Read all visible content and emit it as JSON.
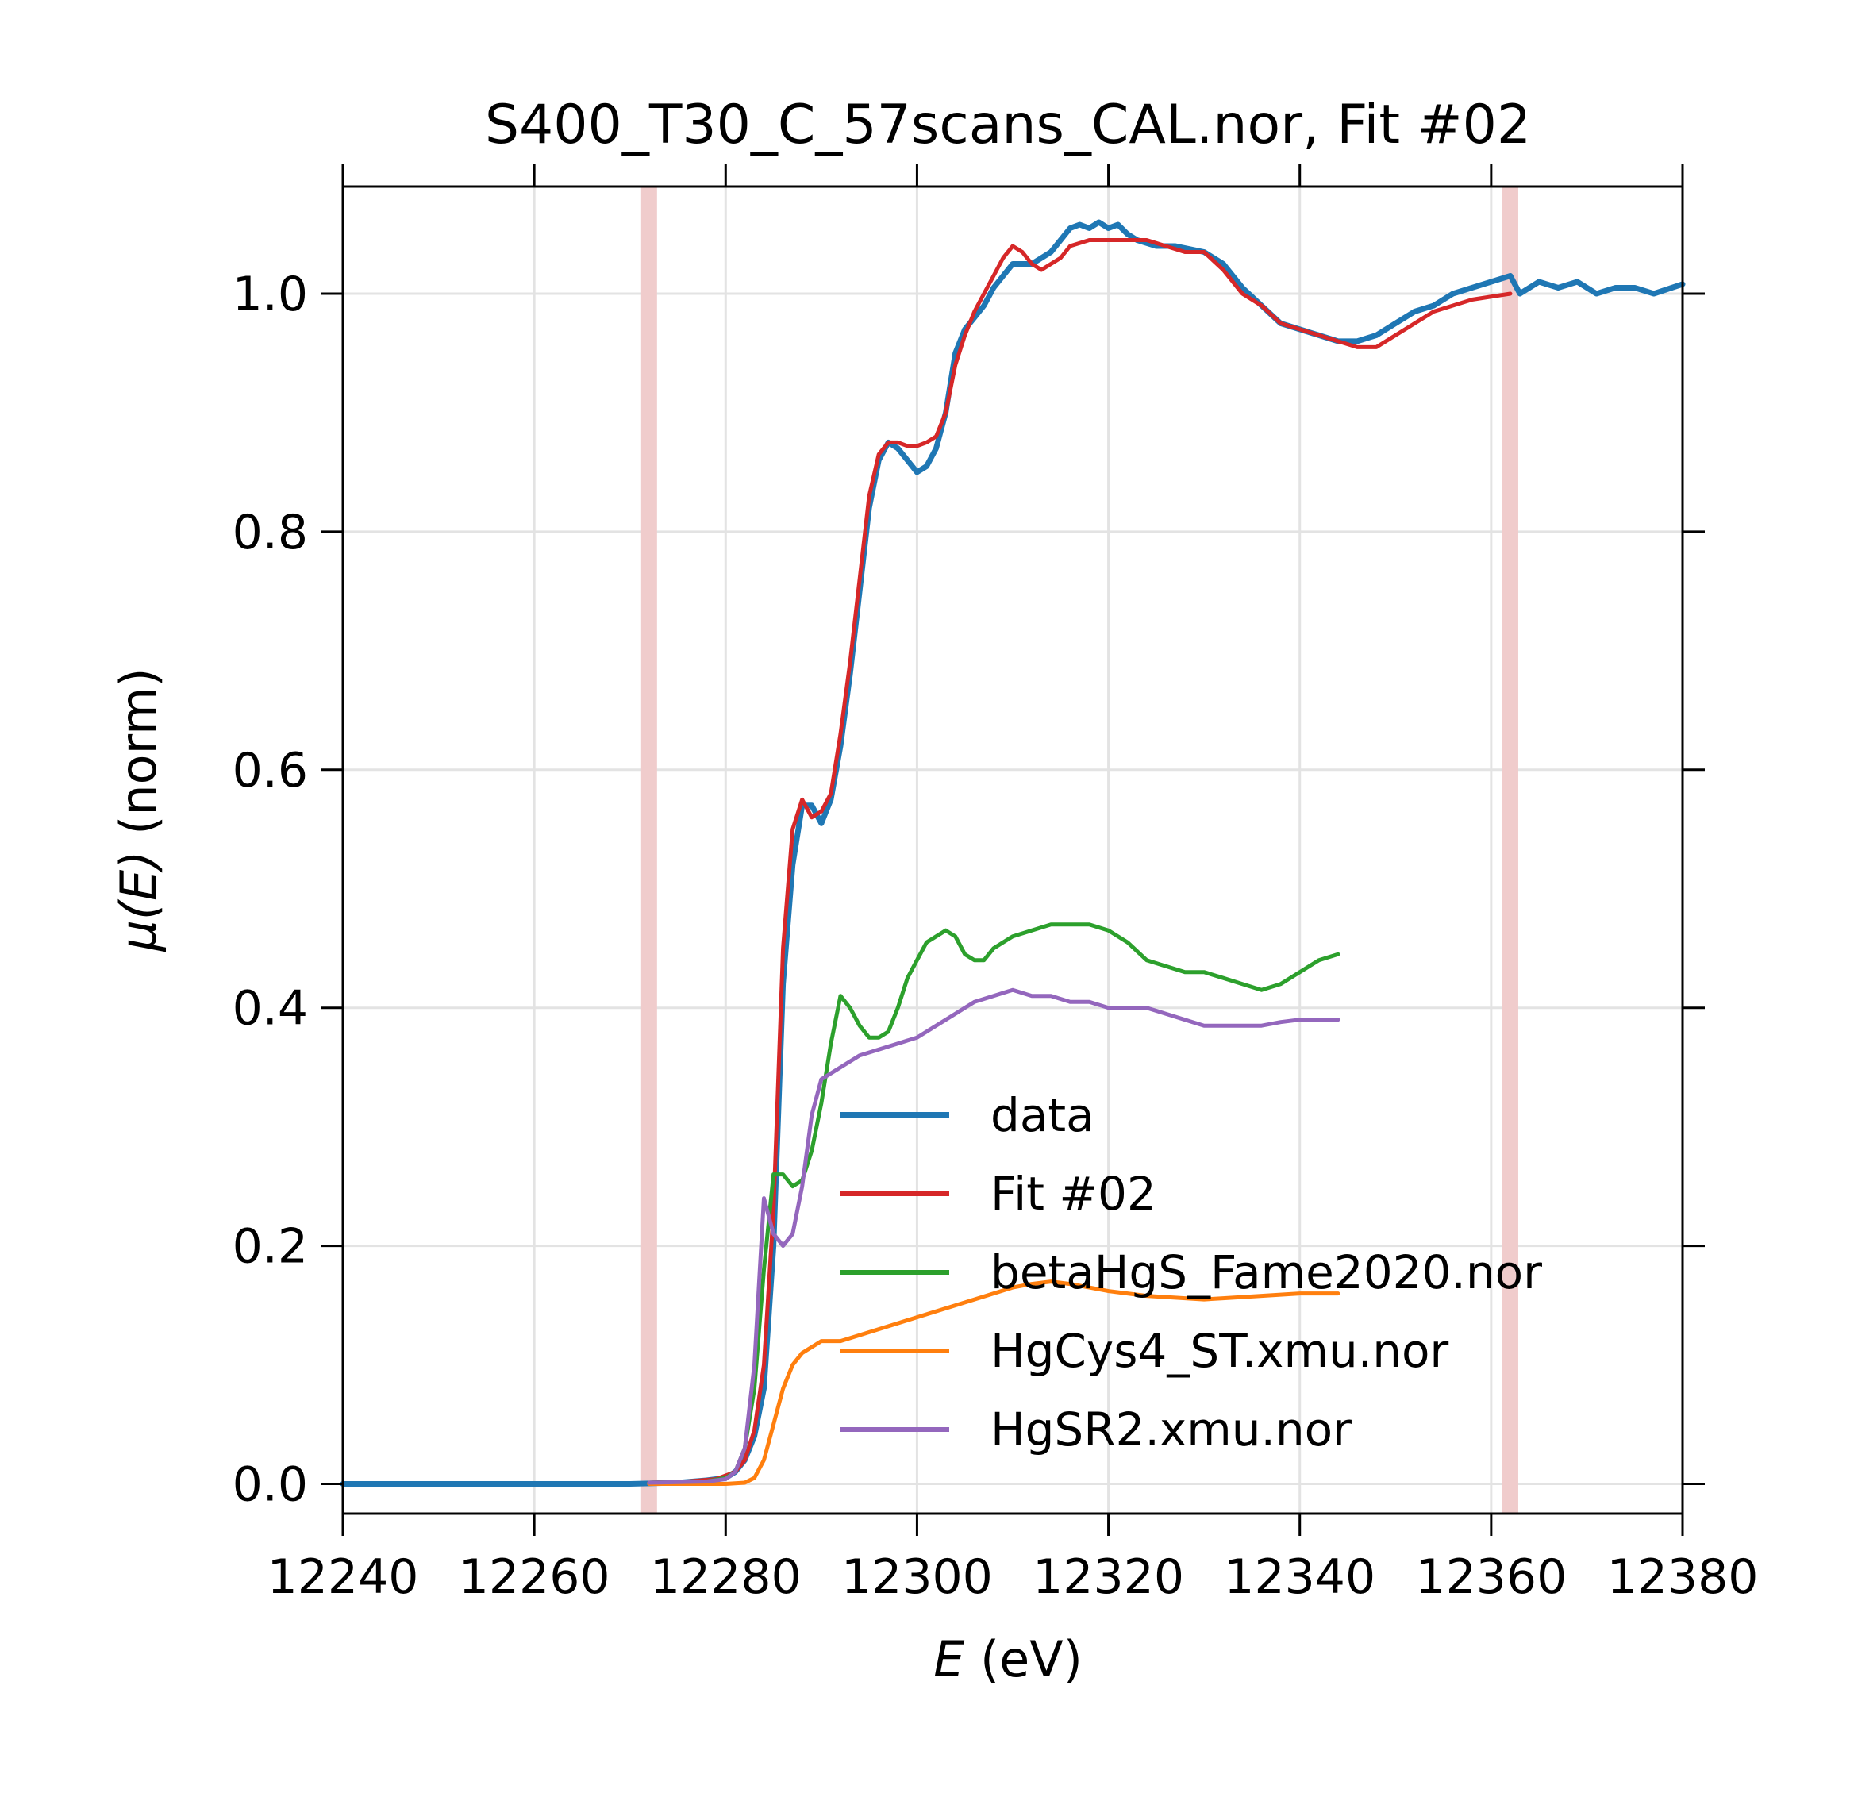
{
  "chart_data": {
    "type": "line",
    "title": "S400_T30_C_57scans_CAL.nor, Fit #02",
    "xlabel_var": "E",
    "xlabel_unit": " (eV)",
    "ylabel_var": "μ(E)",
    "ylabel_unit": " (norm)",
    "xlim": [
      12240,
      12380
    ],
    "ylim": [
      -0.025,
      1.09
    ],
    "xticks": [
      12240,
      12260,
      12280,
      12300,
      12320,
      12340,
      12360,
      12380
    ],
    "yticks": [
      0.0,
      0.2,
      0.4,
      0.6,
      0.8,
      1.0
    ],
    "grid": true,
    "legend_position": "lower-center",
    "fit_range": [
      12272,
      12362
    ],
    "fit_range_color": "#f0cccc",
    "series": [
      {
        "name": "data",
        "color": "#1f77b4",
        "width": 7,
        "points": [
          [
            12240,
            0.0
          ],
          [
            12250,
            0.0
          ],
          [
            12260,
            0.0
          ],
          [
            12270,
            0.0
          ],
          [
            12275,
            0.001
          ],
          [
            12278,
            0.003
          ],
          [
            12280,
            0.005
          ],
          [
            12281,
            0.01
          ],
          [
            12282,
            0.02
          ],
          [
            12283,
            0.04
          ],
          [
            12284,
            0.08
          ],
          [
            12285,
            0.2
          ],
          [
            12286,
            0.42
          ],
          [
            12287,
            0.52
          ],
          [
            12288,
            0.57
          ],
          [
            12289,
            0.57
          ],
          [
            12290,
            0.555
          ],
          [
            12291,
            0.575
          ],
          [
            12292,
            0.62
          ],
          [
            12293,
            0.68
          ],
          [
            12294,
            0.75
          ],
          [
            12295,
            0.82
          ],
          [
            12296,
            0.86
          ],
          [
            12297,
            0.875
          ],
          [
            12298,
            0.87
          ],
          [
            12299,
            0.86
          ],
          [
            12300,
            0.85
          ],
          [
            12301,
            0.855
          ],
          [
            12302,
            0.87
          ],
          [
            12303,
            0.9
          ],
          [
            12304,
            0.95
          ],
          [
            12305,
            0.97
          ],
          [
            12306,
            0.98
          ],
          [
            12307,
            0.99
          ],
          [
            12308,
            1.005
          ],
          [
            12309,
            1.015
          ],
          [
            12310,
            1.025
          ],
          [
            12311,
            1.025
          ],
          [
            12312,
            1.025
          ],
          [
            12313,
            1.03
          ],
          [
            12314,
            1.035
          ],
          [
            12315,
            1.045
          ],
          [
            12316,
            1.055
          ],
          [
            12317,
            1.058
          ],
          [
            12318,
            1.055
          ],
          [
            12319,
            1.06
          ],
          [
            12320,
            1.055
          ],
          [
            12321,
            1.058
          ],
          [
            12322,
            1.05
          ],
          [
            12323,
            1.045
          ],
          [
            12325,
            1.04
          ],
          [
            12327,
            1.04
          ],
          [
            12330,
            1.035
          ],
          [
            12332,
            1.025
          ],
          [
            12334,
            1.005
          ],
          [
            12336,
            0.99
          ],
          [
            12338,
            0.975
          ],
          [
            12340,
            0.97
          ],
          [
            12342,
            0.965
          ],
          [
            12344,
            0.96
          ],
          [
            12346,
            0.96
          ],
          [
            12348,
            0.965
          ],
          [
            12350,
            0.975
          ],
          [
            12352,
            0.985
          ],
          [
            12354,
            0.99
          ],
          [
            12356,
            1.0
          ],
          [
            12358,
            1.005
          ],
          [
            12360,
            1.01
          ],
          [
            12362,
            1.015
          ],
          [
            12363,
            1.0
          ],
          [
            12365,
            1.01
          ],
          [
            12367,
            1.005
          ],
          [
            12369,
            1.01
          ],
          [
            12371,
            1.0
          ],
          [
            12373,
            1.005
          ],
          [
            12375,
            1.005
          ],
          [
            12377,
            1.0
          ],
          [
            12380,
            1.008
          ]
        ]
      },
      {
        "name": "Fit #02",
        "color": "#d62728",
        "width": 5,
        "points": [
          [
            12272,
            0.001
          ],
          [
            12276,
            0.002
          ],
          [
            12279,
            0.004
          ],
          [
            12281,
            0.01
          ],
          [
            12282,
            0.02
          ],
          [
            12283,
            0.045
          ],
          [
            12284,
            0.1
          ],
          [
            12285,
            0.23
          ],
          [
            12286,
            0.45
          ],
          [
            12287,
            0.55
          ],
          [
            12288,
            0.575
          ],
          [
            12289,
            0.56
          ],
          [
            12290,
            0.565
          ],
          [
            12291,
            0.58
          ],
          [
            12292,
            0.63
          ],
          [
            12293,
            0.69
          ],
          [
            12294,
            0.76
          ],
          [
            12295,
            0.83
          ],
          [
            12296,
            0.865
          ],
          [
            12297,
            0.875
          ],
          [
            12298,
            0.875
          ],
          [
            12299,
            0.872
          ],
          [
            12300,
            0.872
          ],
          [
            12301,
            0.875
          ],
          [
            12302,
            0.88
          ],
          [
            12303,
            0.9
          ],
          [
            12304,
            0.94
          ],
          [
            12305,
            0.965
          ],
          [
            12306,
            0.985
          ],
          [
            12307,
            1.0
          ],
          [
            12308,
            1.015
          ],
          [
            12309,
            1.03
          ],
          [
            12310,
            1.04
          ],
          [
            12311,
            1.035
          ],
          [
            12312,
            1.025
          ],
          [
            12313,
            1.02
          ],
          [
            12314,
            1.025
          ],
          [
            12315,
            1.03
          ],
          [
            12316,
            1.04
          ],
          [
            12318,
            1.045
          ],
          [
            12320,
            1.045
          ],
          [
            12322,
            1.045
          ],
          [
            12324,
            1.045
          ],
          [
            12326,
            1.04
          ],
          [
            12328,
            1.035
          ],
          [
            12330,
            1.035
          ],
          [
            12332,
            1.02
          ],
          [
            12334,
            1.0
          ],
          [
            12336,
            0.99
          ],
          [
            12338,
            0.975
          ],
          [
            12340,
            0.97
          ],
          [
            12342,
            0.965
          ],
          [
            12344,
            0.96
          ],
          [
            12346,
            0.955
          ],
          [
            12348,
            0.955
          ],
          [
            12350,
            0.965
          ],
          [
            12352,
            0.975
          ],
          [
            12354,
            0.985
          ],
          [
            12356,
            0.99
          ],
          [
            12358,
            0.995
          ],
          [
            12362,
            1.0
          ]
        ]
      },
      {
        "name": "betaHgS_Fame2020.nor",
        "color": "#2ca02c",
        "width": 5,
        "points": [
          [
            12272,
            0.001
          ],
          [
            12278,
            0.002
          ],
          [
            12280,
            0.005
          ],
          [
            12281,
            0.01
          ],
          [
            12282,
            0.03
          ],
          [
            12283,
            0.08
          ],
          [
            12284,
            0.18
          ],
          [
            12285,
            0.26
          ],
          [
            12286,
            0.26
          ],
          [
            12287,
            0.25
          ],
          [
            12288,
            0.255
          ],
          [
            12289,
            0.28
          ],
          [
            12290,
            0.32
          ],
          [
            12291,
            0.37
          ],
          [
            12292,
            0.41
          ],
          [
            12293,
            0.4
          ],
          [
            12294,
            0.385
          ],
          [
            12295,
            0.375
          ],
          [
            12296,
            0.375
          ],
          [
            12297,
            0.38
          ],
          [
            12298,
            0.4
          ],
          [
            12299,
            0.425
          ],
          [
            12300,
            0.44
          ],
          [
            12301,
            0.455
          ],
          [
            12302,
            0.46
          ],
          [
            12303,
            0.465
          ],
          [
            12304,
            0.46
          ],
          [
            12305,
            0.445
          ],
          [
            12306,
            0.44
          ],
          [
            12307,
            0.44
          ],
          [
            12308,
            0.45
          ],
          [
            12310,
            0.46
          ],
          [
            12312,
            0.465
          ],
          [
            12314,
            0.47
          ],
          [
            12316,
            0.47
          ],
          [
            12318,
            0.47
          ],
          [
            12320,
            0.465
          ],
          [
            12322,
            0.455
          ],
          [
            12324,
            0.44
          ],
          [
            12326,
            0.435
          ],
          [
            12328,
            0.43
          ],
          [
            12330,
            0.43
          ],
          [
            12332,
            0.425
          ],
          [
            12334,
            0.42
          ],
          [
            12336,
            0.415
          ],
          [
            12338,
            0.42
          ],
          [
            12340,
            0.43
          ],
          [
            12342,
            0.44
          ],
          [
            12344,
            0.445
          ]
        ]
      },
      {
        "name": "HgCys4_ST.xmu.nor",
        "color": "#ff7f0e",
        "width": 5,
        "points": [
          [
            12272,
            0.0
          ],
          [
            12280,
            0.0
          ],
          [
            12282,
            0.001
          ],
          [
            12283,
            0.005
          ],
          [
            12284,
            0.02
          ],
          [
            12285,
            0.05
          ],
          [
            12286,
            0.08
          ],
          [
            12287,
            0.1
          ],
          [
            12288,
            0.11
          ],
          [
            12289,
            0.115
          ],
          [
            12290,
            0.12
          ],
          [
            12292,
            0.12
          ],
          [
            12294,
            0.125
          ],
          [
            12296,
            0.13
          ],
          [
            12298,
            0.135
          ],
          [
            12300,
            0.14
          ],
          [
            12302,
            0.145
          ],
          [
            12304,
            0.15
          ],
          [
            12306,
            0.155
          ],
          [
            12308,
            0.16
          ],
          [
            12310,
            0.165
          ],
          [
            12312,
            0.168
          ],
          [
            12314,
            0.17
          ],
          [
            12316,
            0.168
          ],
          [
            12318,
            0.165
          ],
          [
            12320,
            0.162
          ],
          [
            12322,
            0.16
          ],
          [
            12324,
            0.158
          ],
          [
            12326,
            0.157
          ],
          [
            12328,
            0.156
          ],
          [
            12330,
            0.155
          ],
          [
            12332,
            0.156
          ],
          [
            12334,
            0.157
          ],
          [
            12336,
            0.158
          ],
          [
            12338,
            0.159
          ],
          [
            12340,
            0.16
          ],
          [
            12344,
            0.16
          ]
        ]
      },
      {
        "name": "HgSR2.xmu.nor",
        "color": "#9467bd",
        "width": 5,
        "points": [
          [
            12272,
            0.001
          ],
          [
            12278,
            0.002
          ],
          [
            12280,
            0.004
          ],
          [
            12281,
            0.01
          ],
          [
            12282,
            0.03
          ],
          [
            12283,
            0.1
          ],
          [
            12284,
            0.24
          ],
          [
            12285,
            0.21
          ],
          [
            12286,
            0.2
          ],
          [
            12287,
            0.21
          ],
          [
            12288,
            0.25
          ],
          [
            12289,
            0.31
          ],
          [
            12290,
            0.34
          ],
          [
            12291,
            0.345
          ],
          [
            12292,
            0.35
          ],
          [
            12293,
            0.355
          ],
          [
            12294,
            0.36
          ],
          [
            12296,
            0.365
          ],
          [
            12298,
            0.37
          ],
          [
            12300,
            0.375
          ],
          [
            12302,
            0.385
          ],
          [
            12304,
            0.395
          ],
          [
            12306,
            0.405
          ],
          [
            12308,
            0.41
          ],
          [
            12310,
            0.415
          ],
          [
            12312,
            0.41
          ],
          [
            12314,
            0.41
          ],
          [
            12316,
            0.405
          ],
          [
            12318,
            0.405
          ],
          [
            12320,
            0.4
          ],
          [
            12322,
            0.4
          ],
          [
            12324,
            0.4
          ],
          [
            12326,
            0.395
          ],
          [
            12328,
            0.39
          ],
          [
            12330,
            0.385
          ],
          [
            12332,
            0.385
          ],
          [
            12334,
            0.385
          ],
          [
            12336,
            0.385
          ],
          [
            12338,
            0.388
          ],
          [
            12340,
            0.39
          ],
          [
            12344,
            0.39
          ]
        ]
      }
    ]
  }
}
